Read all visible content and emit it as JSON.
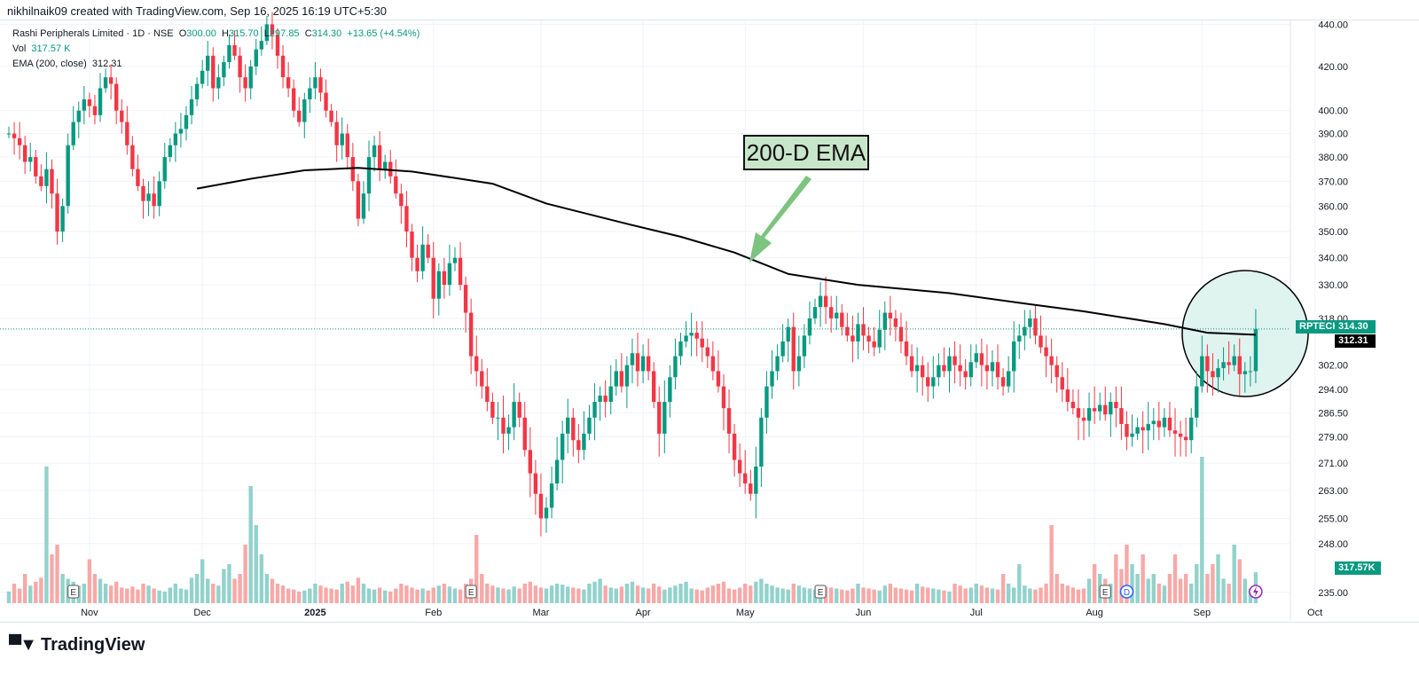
{
  "credit": "nikhilnaik09 created with TradingView.com, Sep 16, 2025 16:19 UTC+5:30",
  "legend": {
    "symbol_line": "Rashi Peripherals Limited · 1D · NSE",
    "o_label": "O",
    "o": "300.00",
    "h_label": "H",
    "h": "315.70",
    "l_label": "L",
    "l": "297.85",
    "c_label": "C",
    "c": "314.30",
    "change": "+13.65 (+4.54%)",
    "vol_label": "Vol",
    "vol": "317.57 K",
    "ema_label": "EMA (200, close)",
    "ema": "312.31"
  },
  "annotation": {
    "text": "200-D EMA"
  },
  "price_tags": {
    "symbol": "RPTECH",
    "last": "314.30",
    "ema": "312.31",
    "volume": "317.57K"
  },
  "footer": {
    "brand": "TradingView"
  },
  "colors": {
    "up": "#089981",
    "down": "#f23645",
    "up_vol": "#92d2cc",
    "down_vol": "#f7a9a7",
    "ema": "#000000"
  },
  "chart_data": {
    "type": "candlestick",
    "title": "Rashi Peripherals Limited · 1D · NSE",
    "y_ticks": [
      440,
      420,
      400,
      390,
      380,
      370,
      360,
      350,
      340,
      330,
      318,
      302,
      294,
      286.5,
      279,
      271,
      263,
      255,
      248,
      235
    ],
    "y_tick_labels": [
      "440.00",
      "420.00",
      "400.00",
      "390.00",
      "380.00",
      "370.00",
      "360.00",
      "350.00",
      "340.00",
      "330.00",
      "318.00",
      "302.00",
      "294.00",
      "286.50",
      "279.00",
      "271.00",
      "263.00",
      "255.00",
      "248.00",
      "235.00"
    ],
    "ylim": [
      235,
      440
    ],
    "x_ticks": [
      {
        "label": "Nov",
        "bar": 15
      },
      {
        "label": "Dec",
        "bar": 36
      },
      {
        "label": "2025",
        "bar": 57
      },
      {
        "label": "Feb",
        "bar": 79
      },
      {
        "label": "Mar",
        "bar": 99
      },
      {
        "label": "Apr",
        "bar": 118
      },
      {
        "label": "May",
        "bar": 137
      },
      {
        "label": "Jun",
        "bar": 159
      },
      {
        "label": "Jul",
        "bar": 180
      },
      {
        "label": "Aug",
        "bar": 202
      },
      {
        "label": "Sep",
        "bar": 222
      },
      {
        "label": "Oct",
        "bar": 243
      }
    ],
    "events": [
      {
        "type": "E",
        "bar": 12
      },
      {
        "type": "E",
        "bar": 86
      },
      {
        "type": "E",
        "bar": 151
      },
      {
        "type": "E",
        "bar": 204
      },
      {
        "type": "D",
        "bar": 208
      },
      {
        "type": "split",
        "bar": 232
      }
    ],
    "closes": [
      390,
      388,
      385,
      378,
      380,
      372,
      368,
      375,
      365,
      350,
      360,
      385,
      395,
      400,
      405,
      402,
      398,
      410,
      415,
      412,
      400,
      395,
      385,
      375,
      368,
      362,
      365,
      360,
      370,
      380,
      385,
      390,
      392,
      398,
      405,
      412,
      418,
      425,
      410,
      415,
      422,
      430,
      425,
      415,
      410,
      420,
      428,
      432,
      440,
      435,
      425,
      415,
      410,
      400,
      395,
      405,
      410,
      415,
      408,
      400,
      395,
      385,
      390,
      380,
      370,
      355,
      365,
      380,
      385,
      375,
      378,
      372,
      365,
      360,
      350,
      340,
      335,
      345,
      340,
      325,
      335,
      330,
      338,
      340,
      330,
      320,
      305,
      300,
      295,
      290,
      285,
      285,
      280,
      282,
      290,
      285,
      275,
      268,
      262,
      255,
      258,
      265,
      272,
      280,
      285,
      278,
      275,
      280,
      285,
      290,
      292,
      290,
      295,
      300,
      295,
      302,
      306,
      300,
      305,
      300,
      290,
      280,
      290,
      298,
      305,
      310,
      312,
      313,
      311,
      308,
      305,
      300,
      295,
      288,
      280,
      272,
      268,
      265,
      262,
      270,
      285,
      295,
      300,
      305,
      310,
      315,
      300,
      305,
      312,
      318,
      322,
      326,
      322,
      318,
      320,
      315,
      312,
      310,
      316,
      312,
      310,
      308,
      314,
      320,
      318,
      315,
      310,
      305,
      300,
      302,
      298,
      295,
      298,
      302,
      300,
      305,
      302,
      300,
      298,
      303,
      306,
      302,
      300,
      303,
      298,
      295,
      300,
      310,
      312,
      315,
      318,
      312,
      308,
      305,
      302,
      298,
      294,
      290,
      288,
      285,
      284,
      288,
      287,
      289,
      286,
      290,
      288,
      283,
      279,
      280,
      282,
      281,
      283,
      284,
      282,
      285,
      281,
      280,
      279,
      278,
      285,
      295,
      305,
      300,
      298,
      301,
      303,
      302,
      305,
      299,
      300,
      300,
      314.3
    ],
    "volumes_k": [
      120,
      200,
      150,
      300,
      180,
      220,
      260,
      1400,
      500,
      600,
      300,
      250,
      220,
      180,
      200,
      450,
      300,
      250,
      200,
      180,
      220,
      160,
      150,
      170,
      140,
      200,
      180,
      150,
      130,
      120,
      160,
      200,
      150,
      140,
      260,
      300,
      450,
      250,
      200,
      180,
      350,
      400,
      250,
      300,
      600,
      1200,
      800,
      500,
      300,
      250,
      200,
      180,
      150,
      140,
      120,
      130,
      150,
      200,
      180,
      160,
      150,
      140,
      200,
      220,
      180,
      260,
      200,
      150,
      140,
      160,
      130,
      120,
      150,
      200,
      180,
      160,
      140,
      150,
      130,
      160,
      180,
      200,
      170,
      150,
      140,
      200,
      250,
      700,
      300,
      200,
      180,
      160,
      150,
      140,
      170,
      150,
      200,
      220,
      180,
      160,
      150,
      180,
      200,
      190,
      170,
      160,
      150,
      140,
      200,
      220,
      250,
      180,
      160,
      150,
      170,
      200,
      220,
      180,
      160,
      150,
      200,
      170,
      140,
      160,
      180,
      200,
      220,
      150,
      140,
      130,
      160,
      180,
      200,
      220,
      150,
      140,
      160,
      200,
      180,
      220,
      250,
      200,
      180,
      160,
      150,
      140,
      200,
      180,
      160,
      150,
      140,
      180,
      170,
      160,
      150,
      140,
      130,
      150,
      200,
      160,
      150,
      140,
      130,
      180,
      200,
      160,
      150,
      140,
      130,
      200,
      170,
      160,
      150,
      140,
      130,
      120,
      200,
      180,
      150,
      160,
      200,
      180,
      160,
      150,
      140,
      300,
      200,
      160,
      400,
      180,
      150,
      140,
      160,
      200,
      800,
      300,
      200,
      180,
      160,
      140,
      150,
      250,
      400,
      300,
      250,
      200,
      500,
      350,
      600,
      400,
      300,
      500,
      250,
      300,
      200,
      180,
      300,
      500,
      250,
      300,
      200,
      400,
      1500,
      300,
      400,
      500,
      250,
      200,
      600,
      450,
      250,
      150,
      317.57
    ],
    "ema_points": [
      {
        "bar": 35,
        "value": 367
      },
      {
        "bar": 45,
        "value": 371
      },
      {
        "bar": 55,
        "value": 374.5
      },
      {
        "bar": 65,
        "value": 375.5
      },
      {
        "bar": 75,
        "value": 374
      },
      {
        "bar": 90,
        "value": 369
      },
      {
        "bar": 100,
        "value": 361
      },
      {
        "bar": 115,
        "value": 353
      },
      {
        "bar": 125,
        "value": 348
      },
      {
        "bar": 135,
        "value": 342
      },
      {
        "bar": 145,
        "value": 334
      },
      {
        "bar": 158,
        "value": 330
      },
      {
        "bar": 175,
        "value": 327
      },
      {
        "bar": 190,
        "value": 323
      },
      {
        "bar": 200,
        "value": 320.5
      },
      {
        "bar": 215,
        "value": 316
      },
      {
        "bar": 223,
        "value": 313
      },
      {
        "bar": 232,
        "value": 312.31
      }
    ]
  }
}
